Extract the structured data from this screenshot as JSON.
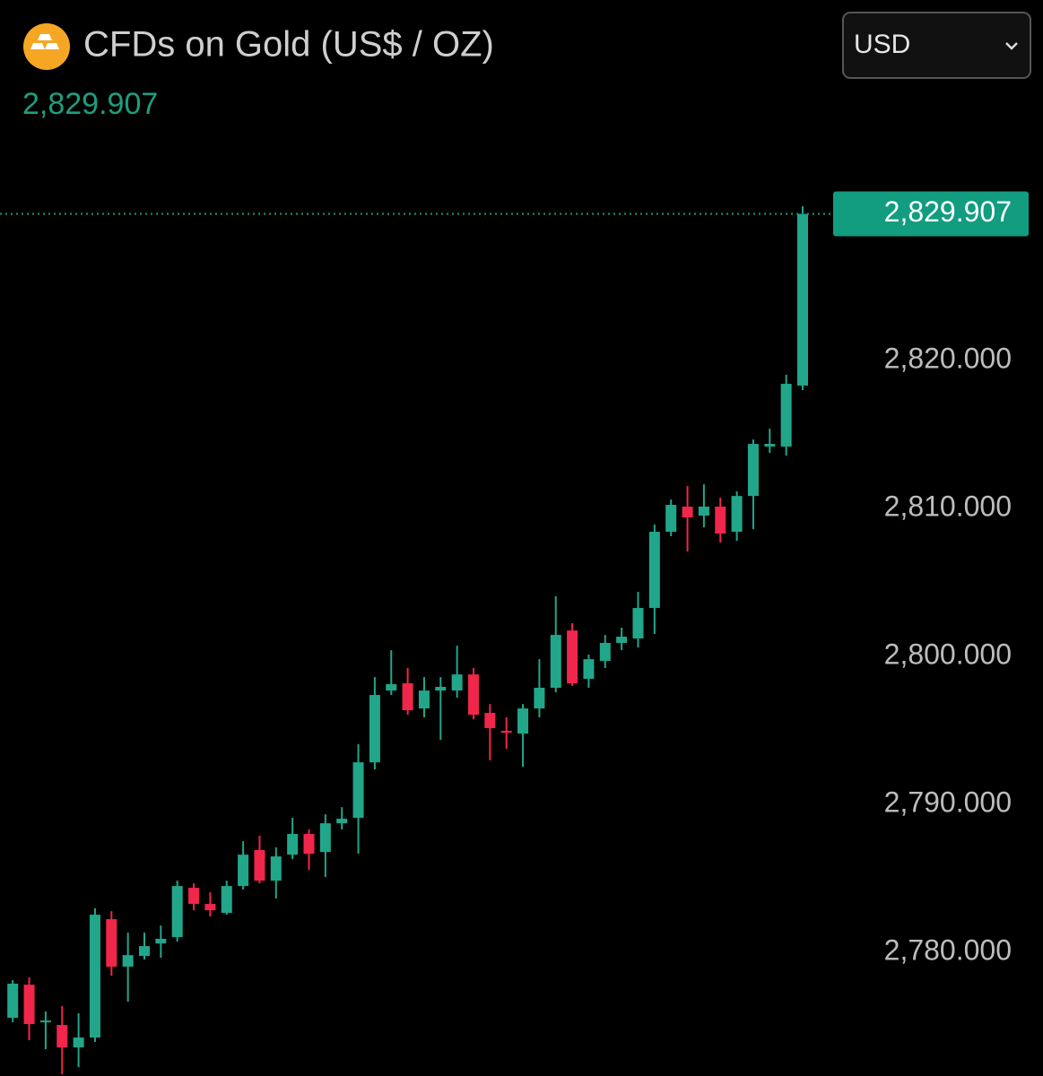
{
  "controls": {
    "currency": "USD"
  },
  "chart_data": {
    "type": "candlestick",
    "title": "CFDs on Gold (US$ / OZ)",
    "last_price": {
      "value": 2829.907,
      "label": "2,829.907"
    },
    "up_color": "#22a68a",
    "down_color": "#f0264a",
    "price_line_color": "#129c80",
    "grid": false,
    "ylim": [
      2771.64,
      2844.36
    ],
    "yticks": [
      {
        "value": 2780,
        "label": "2,780.000"
      },
      {
        "value": 2790,
        "label": "2,790.000"
      },
      {
        "value": 2800,
        "label": "2,800.000"
      },
      {
        "value": 2810,
        "label": "2,810.000"
      },
      {
        "value": 2820,
        "label": "2,820.000"
      }
    ],
    "open": [
      2775.57,
      2777.81,
      2775.27,
      2775.09,
      2773.57,
      2774.24,
      2782.24,
      2779.03,
      2779.75,
      2780.6,
      2781.03,
      2784.36,
      2783.27,
      2782.66,
      2784.48,
      2786.91,
      2784.84,
      2786.6,
      2788.0,
      2786.78,
      2788.72,
      2789.09,
      2792.84,
      2797.69,
      2798.18,
      2796.48,
      2797.69,
      2797.69,
      2798.78,
      2796.18,
      2794.97,
      2794.78,
      2796.48,
      2797.88,
      2801.75,
      2798.48,
      2799.69,
      2800.91,
      2801.21,
      2803.27,
      2808.42,
      2810.12,
      2809.51,
      2810.12,
      2808.42,
      2810.84,
      2814.18,
      2814.18,
      2818.3
    ],
    "high": [
      2778.12,
      2778.3,
      2776.0,
      2776.36,
      2775.88,
      2782.97,
      2782.78,
      2781.33,
      2781.33,
      2781.81,
      2784.84,
      2784.66,
      2784.06,
      2784.84,
      2787.51,
      2787.88,
      2787.09,
      2789.09,
      2788.3,
      2789.33,
      2789.81,
      2794.06,
      2798.6,
      2800.42,
      2799.21,
      2798.6,
      2798.6,
      2800.72,
      2799.21,
      2796.78,
      2795.88,
      2796.78,
      2799.81,
      2804.06,
      2802.24,
      2800.12,
      2801.45,
      2801.94,
      2804.36,
      2808.91,
      2810.6,
      2811.51,
      2811.63,
      2810.72,
      2811.15,
      2814.66,
      2815.39,
      2819.03,
      2830.42
    ],
    "low": [
      2775.27,
      2774.06,
      2773.45,
      2771.75,
      2772.24,
      2773.94,
      2778.42,
      2776.66,
      2779.51,
      2779.63,
      2780.72,
      2782.84,
      2782.42,
      2782.54,
      2784.24,
      2784.66,
      2783.63,
      2786.3,
      2785.57,
      2785.09,
      2788.3,
      2786.66,
      2792.36,
      2797.39,
      2796.06,
      2795.88,
      2794.36,
      2797.21,
      2795.75,
      2792.97,
      2793.75,
      2792.54,
      2795.88,
      2797.57,
      2798.0,
      2797.88,
      2799.21,
      2800.42,
      2800.6,
      2801.51,
      2808.12,
      2807.09,
      2808.72,
      2807.69,
      2807.81,
      2808.6,
      2813.75,
      2813.57,
      2818.0
    ],
    "close": [
      2777.88,
      2775.15,
      2775.39,
      2773.57,
      2774.24,
      2782.54,
      2779.03,
      2779.81,
      2780.42,
      2780.91,
      2784.48,
      2783.27,
      2782.84,
      2784.48,
      2786.6,
      2784.84,
      2786.48,
      2788.0,
      2786.66,
      2788.72,
      2789.03,
      2792.84,
      2797.39,
      2798.12,
      2796.36,
      2797.69,
      2797.94,
      2798.78,
      2796.06,
      2795.15,
      2794.84,
      2796.48,
      2797.88,
      2801.45,
      2798.18,
      2799.81,
      2800.91,
      2801.33,
      2803.27,
      2808.42,
      2810.24,
      2809.39,
      2810.12,
      2808.3,
      2810.84,
      2814.36,
      2814.36,
      2818.42,
      2829.907
    ]
  }
}
